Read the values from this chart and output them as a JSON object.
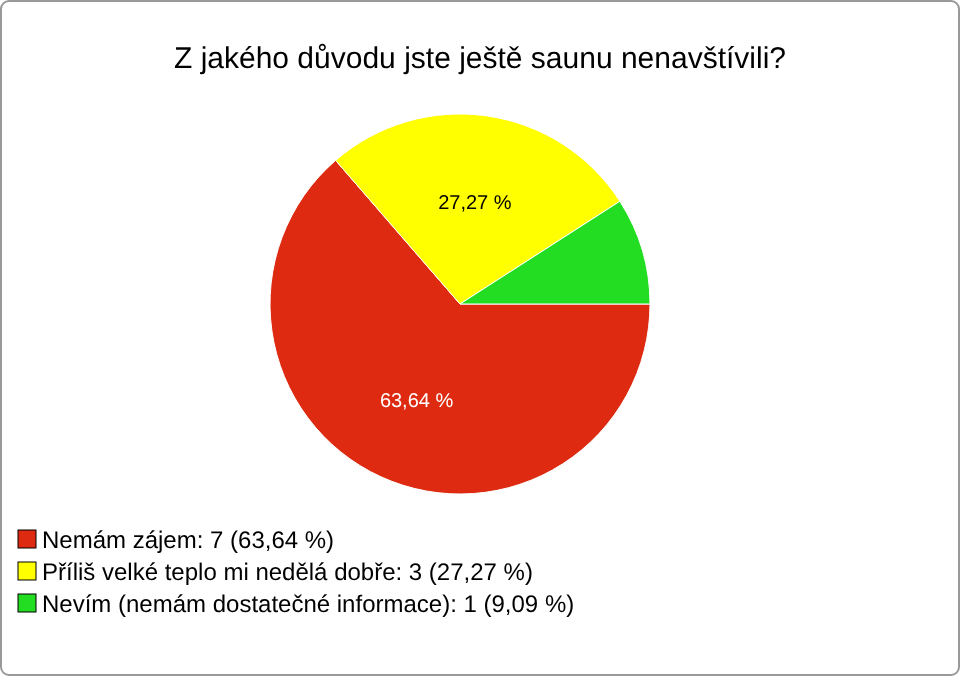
{
  "chart_data": {
    "type": "pie",
    "title": "Z jakého důvodu jste ještě saunu nenavštívili?",
    "categories": [
      "Nemám zájem: 7 (63,64 %)",
      "Příliš velké teplo mi nedělá dobře: 3 (27,27 %)",
      "Nevím (nemám dostatečné informace): 1 (9,09 %)"
    ],
    "values": [
      63.64,
      27.27,
      9.09
    ],
    "value_labels": [
      "63,64 %",
      "27,27 %",
      null
    ],
    "colors": [
      "#dd2a10",
      "#ffff00",
      "#22dd22"
    ],
    "legend": "bottom left"
  }
}
